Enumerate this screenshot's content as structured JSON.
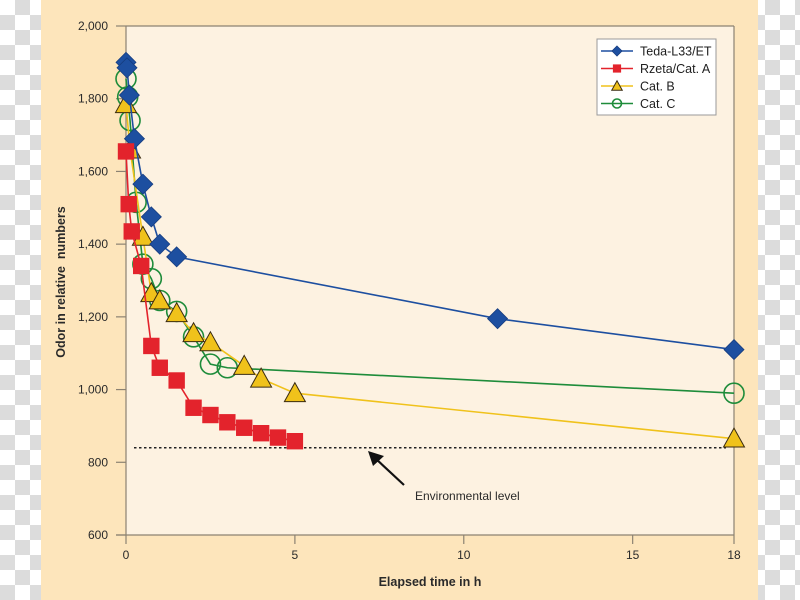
{
  "chart_data": {
    "type": "line",
    "title": "",
    "xlabel": "Elapsed time in h",
    "ylabel": "Odor in relative  numbers",
    "xlim": [
      0,
      18
    ],
    "ylim": [
      600,
      2000
    ],
    "x_ticks": [
      0,
      5,
      10,
      15,
      18
    ],
    "x_tick_labels": [
      "0",
      "5",
      "10",
      "15",
      "18"
    ],
    "y_ticks": [
      600,
      800,
      1000,
      1200,
      1400,
      1600,
      1800,
      2000
    ],
    "y_tick_labels": [
      "600",
      "800",
      "1,000",
      "1,200",
      "1,400",
      "1,600",
      "1,800",
      "2,000"
    ],
    "grid": false,
    "legend_position": "top-right",
    "series": [
      {
        "name": "Teda-L33/ET",
        "color": "#1d4fa0",
        "marker": "diamond",
        "x": [
          0,
          0.03,
          0.1,
          0.25,
          0.5,
          0.75,
          1.0,
          1.5,
          11,
          18
        ],
        "y": [
          1900,
          1885,
          1810,
          1690,
          1565,
          1475,
          1400,
          1365,
          1195,
          1110
        ]
      },
      {
        "name": "Rzeta/Cat. A",
        "color": "#e3232c",
        "marker": "square",
        "x": [
          0,
          0.08,
          0.17,
          0.45,
          0.75,
          1.0,
          1.5,
          2.0,
          2.5,
          3.0,
          3.5,
          4.0,
          4.5,
          5.0
        ],
        "y": [
          1655,
          1510,
          1435,
          1340,
          1120,
          1060,
          1025,
          950,
          930,
          910,
          895,
          880,
          868,
          858
        ]
      },
      {
        "name": "Cat. B",
        "color": "#f0c21b",
        "marker": "triangle",
        "x": [
          0,
          0.12,
          0.5,
          0.75,
          1.0,
          1.5,
          2.0,
          2.5,
          3.5,
          4.0,
          5.0,
          18
        ],
        "y": [
          1785,
          1660,
          1420,
          1265,
          1245,
          1210,
          1155,
          1130,
          1065,
          1030,
          990,
          865
        ]
      },
      {
        "name": "Cat. C",
        "color": "#1e8c3a",
        "marker": "circle",
        "x": [
          0,
          0.05,
          0.12,
          0.3,
          0.5,
          0.75,
          1.0,
          1.5,
          2.0,
          2.5,
          3.0,
          18
        ],
        "y": [
          1855,
          1805,
          1740,
          1515,
          1345,
          1305,
          1245,
          1215,
          1145,
          1070,
          1060,
          990
        ]
      }
    ],
    "reference_line": {
      "label": "Environmental level",
      "y": 840,
      "style": "dotted"
    },
    "annotations": [
      {
        "text": "Environmental level",
        "arrow_to": "dotted reference line"
      }
    ]
  },
  "colors": {
    "frame_background": "#fde5bb",
    "plot_background": "#fdf2e1",
    "axis": "#8c8272"
  }
}
